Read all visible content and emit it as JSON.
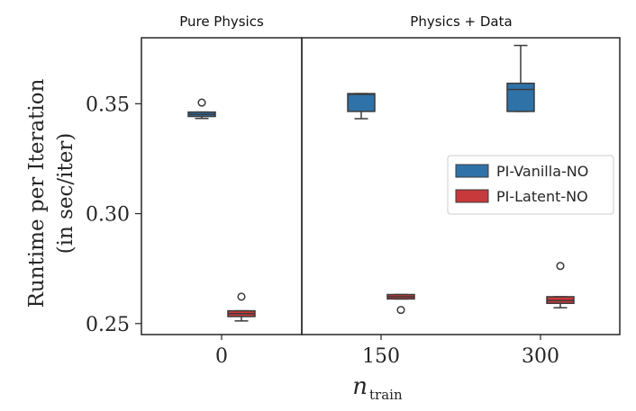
{
  "chart_data": {
    "type": "box",
    "panels": [
      {
        "title": "Pure Physics",
        "categories": [
          "0"
        ]
      },
      {
        "title": "Physics + Data",
        "categories": [
          "150",
          "300"
        ]
      }
    ],
    "xlabel": "n",
    "xlabel_subscript": "train",
    "ylabel_line1": "Runtime per Iteration",
    "ylabel_line2": "(in sec/iter)",
    "ylim": [
      0.245,
      0.38
    ],
    "yticks": [
      "0.25",
      "0.30",
      "0.35"
    ],
    "ytick_values": [
      0.25,
      0.3,
      0.35
    ],
    "grid": false,
    "legend_position": "center-right",
    "series": [
      {
        "name": "PI-Vanilla-NO",
        "color": "#2f72a8",
        "boxes": [
          {
            "category": "0",
            "whisker_low": 0.3433,
            "q1": 0.3442,
            "median": 0.3452,
            "q3": 0.3462,
            "whisker_high": 0.3462,
            "outliers": [
              0.3505
            ]
          },
          {
            "category": "150",
            "whisker_low": 0.3432,
            "q1": 0.3465,
            "median": 0.3543,
            "q3": 0.3546,
            "whisker_high": 0.3546,
            "outliers": []
          },
          {
            "category": "300",
            "whisker_low": 0.3465,
            "q1": 0.3465,
            "median": 0.3565,
            "q3": 0.3593,
            "whisker_high": 0.3765,
            "outliers": []
          }
        ]
      },
      {
        "name": "PI-Latent-NO",
        "color": "#c8393b",
        "boxes": [
          {
            "category": "0",
            "whisker_low": 0.2512,
            "q1": 0.2532,
            "median": 0.2545,
            "q3": 0.2558,
            "whisker_high": 0.2558,
            "outliers": [
              0.2622
            ]
          },
          {
            "category": "150",
            "whisker_low": 0.2612,
            "q1": 0.2612,
            "median": 0.2622,
            "q3": 0.2632,
            "whisker_high": 0.2632,
            "outliers": [
              0.2562
            ]
          },
          {
            "category": "300",
            "whisker_low": 0.2572,
            "q1": 0.2592,
            "median": 0.2605,
            "q3": 0.2622,
            "whisker_high": 0.2622,
            "outliers": [
              0.2762
            ]
          }
        ]
      }
    ]
  }
}
